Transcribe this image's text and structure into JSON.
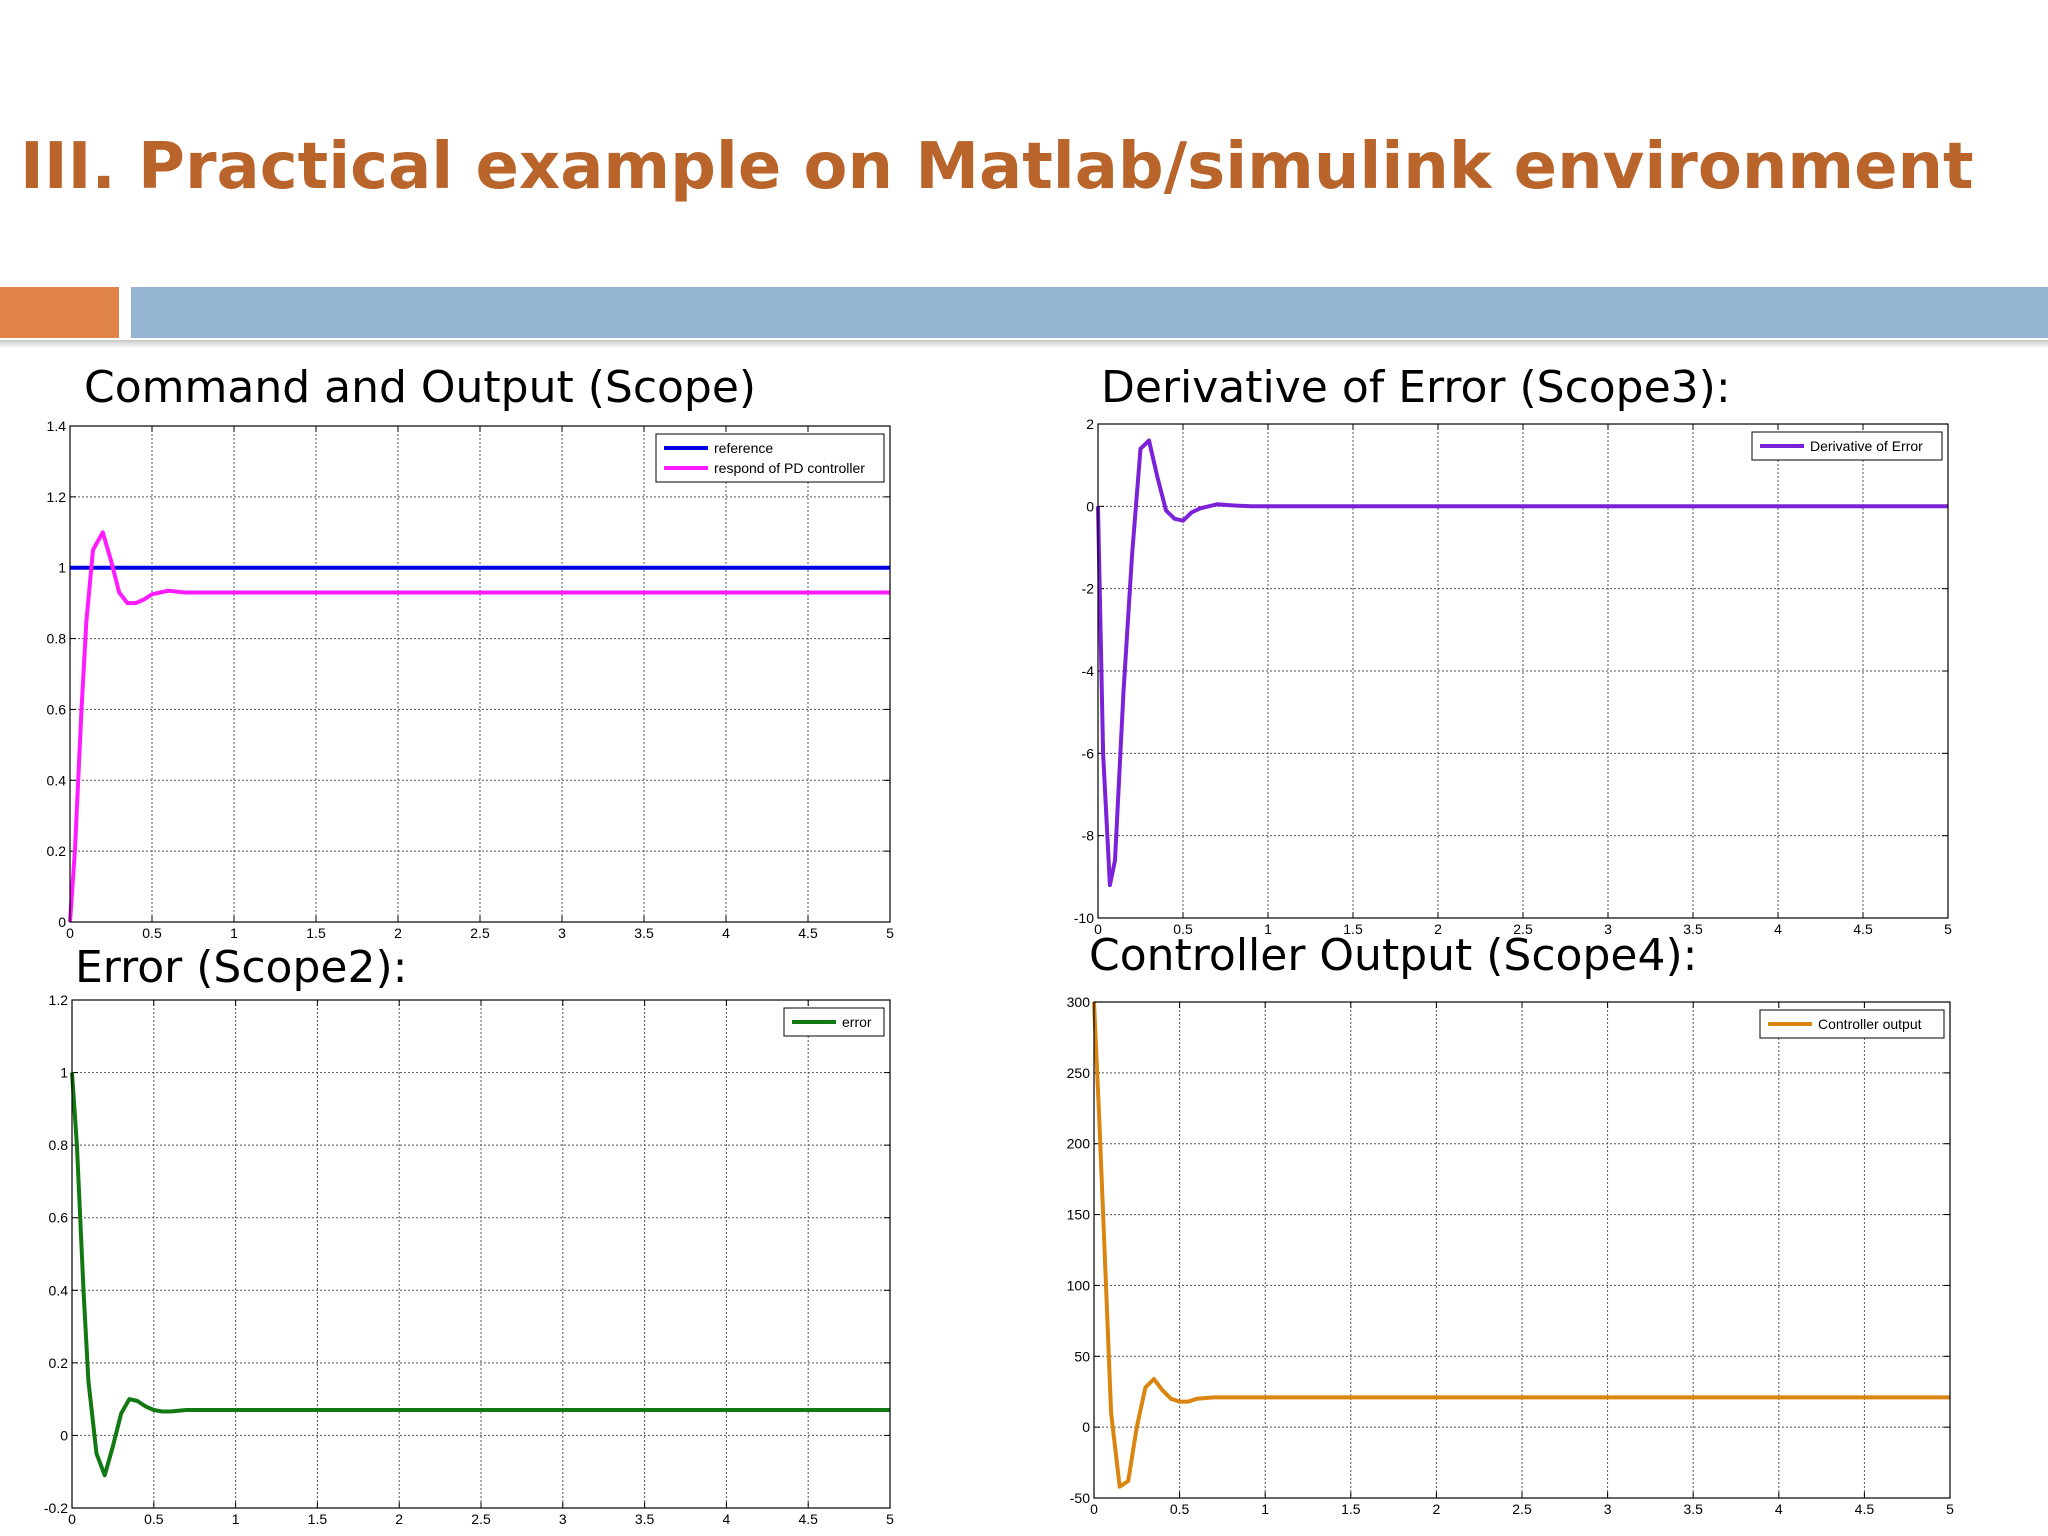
{
  "slide": {
    "title": "III. Practical example on Matlab/simulink environment"
  },
  "colors": {
    "title": "#b8642a",
    "accent_orange": "#e0834a",
    "accent_blue": "#96b5d2"
  },
  "charts": {
    "scope": {
      "heading": "Command and Output (Scope)"
    },
    "scope3": {
      "heading": "Derivative of Error (Scope3):"
    },
    "scope2": {
      "heading": "Error (Scope2):"
    },
    "scope4": {
      "heading": "Controller Output (Scope4):"
    }
  },
  "chart_data": [
    {
      "id": "scope",
      "type": "line",
      "xlim": [
        0,
        5
      ],
      "ylim": [
        0,
        1.4
      ],
      "xticks": [
        0,
        0.5,
        1,
        1.5,
        2,
        2.5,
        3,
        3.5,
        4,
        4.5,
        5
      ],
      "xtick_labels": [
        "0",
        "0.5",
        "1",
        "1.5",
        "2",
        "2.5",
        "3",
        "3.5",
        "4",
        "4.5",
        "5"
      ],
      "yticks": [
        0,
        0.2,
        0.4,
        0.6,
        0.8,
        1,
        1.2,
        1.4
      ],
      "ytick_labels": [
        "0",
        "0.2",
        "0.4",
        "0.6",
        "0.8",
        "1",
        "1.2",
        "1.4"
      ],
      "grid": true,
      "legend_position": "top-right",
      "series": [
        {
          "name": "reference",
          "color": "#0000e6",
          "x": [
            0,
            5
          ],
          "y": [
            1,
            1
          ]
        },
        {
          "name": "respond of PD controller",
          "color": "#ff1aff",
          "x": [
            0,
            0.03,
            0.07,
            0.1,
            0.14,
            0.2,
            0.25,
            0.3,
            0.35,
            0.4,
            0.45,
            0.5,
            0.55,
            0.6,
            0.7,
            0.8,
            1,
            5
          ],
          "y": [
            0,
            0.2,
            0.6,
            0.85,
            1.05,
            1.1,
            1.02,
            0.93,
            0.9,
            0.9,
            0.91,
            0.925,
            0.93,
            0.935,
            0.93,
            0.93,
            0.93,
            0.93
          ]
        }
      ]
    },
    {
      "id": "scope3",
      "type": "line",
      "xlim": [
        0,
        5
      ],
      "ylim": [
        -10,
        2
      ],
      "xticks": [
        0,
        0.5,
        1,
        1.5,
        2,
        2.5,
        3,
        3.5,
        4,
        4.5,
        5
      ],
      "xtick_labels": [
        "0",
        "0.5",
        "1",
        "1.5",
        "2",
        "2.5",
        "3",
        "3.5",
        "4",
        "4.5",
        "5"
      ],
      "yticks": [
        -10,
        -8,
        -6,
        -4,
        -2,
        0,
        2
      ],
      "ytick_labels": [
        "-10",
        "-8",
        "-6",
        "-4",
        "-2",
        "0",
        "2"
      ],
      "grid": true,
      "legend_position": "top-right",
      "series": [
        {
          "name": "Derivative of Error",
          "color": "#7b22d8",
          "x": [
            0,
            0.03,
            0.07,
            0.1,
            0.15,
            0.2,
            0.25,
            0.3,
            0.35,
            0.4,
            0.45,
            0.5,
            0.55,
            0.6,
            0.7,
            0.8,
            0.9,
            1,
            5
          ],
          "y": [
            0,
            -6,
            -9.2,
            -8.6,
            -4.5,
            -1.2,
            1.4,
            1.6,
            0.7,
            -0.1,
            -0.3,
            -0.35,
            -0.15,
            -0.05,
            0.05,
            0.02,
            0,
            0,
            0
          ]
        }
      ]
    },
    {
      "id": "scope2",
      "type": "line",
      "xlim": [
        0,
        5
      ],
      "ylim": [
        -0.2,
        1.2
      ],
      "xticks": [
        0,
        0.5,
        1,
        1.5,
        2,
        2.5,
        3,
        3.5,
        4,
        4.5,
        5
      ],
      "xtick_labels": [
        "0",
        "0.5",
        "1",
        "1.5",
        "2",
        "2.5",
        "3",
        "3.5",
        "4",
        "4.5",
        "5"
      ],
      "yticks": [
        -0.2,
        0,
        0.2,
        0.4,
        0.6,
        0.8,
        1,
        1.2
      ],
      "ytick_labels": [
        "-0.2",
        "0",
        "0.2",
        "0.4",
        "0.6",
        "0.8",
        "1",
        "1.2"
      ],
      "grid": true,
      "legend_position": "top-right",
      "series": [
        {
          "name": "error",
          "color": "#127812",
          "x": [
            0,
            0.03,
            0.07,
            0.1,
            0.15,
            0.2,
            0.25,
            0.3,
            0.35,
            0.4,
            0.45,
            0.5,
            0.55,
            0.6,
            0.7,
            0.8,
            1,
            5
          ],
          "y": [
            1,
            0.8,
            0.4,
            0.15,
            -0.05,
            -0.11,
            -0.03,
            0.06,
            0.1,
            0.095,
            0.08,
            0.07,
            0.066,
            0.066,
            0.07,
            0.07,
            0.07,
            0.07
          ]
        }
      ]
    },
    {
      "id": "scope4",
      "type": "line",
      "xlim": [
        0,
        5
      ],
      "ylim": [
        -50,
        300
      ],
      "xticks": [
        0,
        0.5,
        1,
        1.5,
        2,
        2.5,
        3,
        3.5,
        4,
        4.5,
        5
      ],
      "xtick_labels": [
        "0",
        "0.5",
        "1",
        "1.5",
        "2",
        "2.5",
        "3",
        "3.5",
        "4",
        "4.5",
        "5"
      ],
      "yticks": [
        -50,
        0,
        50,
        100,
        150,
        200,
        250,
        300
      ],
      "ytick_labels": [
        "-50",
        "0",
        "50",
        "100",
        "150",
        "200",
        "250",
        "300"
      ],
      "grid": true,
      "legend_position": "top-right",
      "series": [
        {
          "name": "Controller output",
          "color": "#d9850f",
          "x": [
            0,
            0.03,
            0.07,
            0.1,
            0.15,
            0.2,
            0.25,
            0.3,
            0.35,
            0.4,
            0.45,
            0.5,
            0.55,
            0.6,
            0.7,
            0.8,
            1,
            5
          ],
          "y": [
            300,
            220,
            100,
            10,
            -42,
            -38,
            0,
            28,
            34,
            26,
            20,
            18,
            18,
            20,
            21,
            21,
            21,
            21
          ]
        }
      ]
    }
  ]
}
